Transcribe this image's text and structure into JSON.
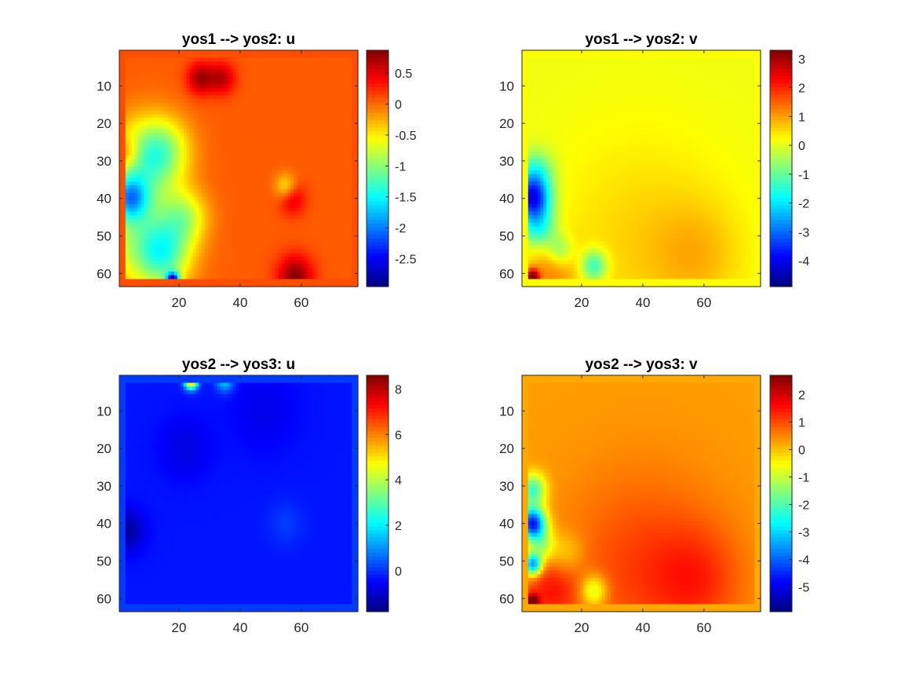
{
  "figure": {
    "background": "#ffffff",
    "colormap": "jet"
  },
  "chart_data": [
    {
      "type": "heatmap",
      "title": "yos1 --> yos2: u",
      "xlabel": "",
      "ylabel": "",
      "x_range": [
        0.5,
        78.5
      ],
      "y_range": [
        0.5,
        63.5
      ],
      "y_reversed": true,
      "x_ticks": [
        20,
        40,
        60
      ],
      "y_ticks": [
        10,
        20,
        30,
        40,
        50,
        60
      ],
      "clim": [
        -2.95,
        0.87
      ],
      "colorbar_ticks": [
        0.5,
        0,
        -0.5,
        -1,
        -1.5,
        -2,
        -2.5
      ],
      "colorbar_tick_labels": [
        "0.5",
        "0",
        "-0.5",
        "-1",
        "-1.5",
        "-2",
        "-2.5"
      ],
      "field": {
        "border_value": 0.1,
        "base_value": 0.05,
        "blobs": [
          {
            "x": 8,
            "y": 30,
            "r": 8,
            "v": -0.9
          },
          {
            "x": 15,
            "y": 27,
            "r": 6,
            "v": -0.7
          },
          {
            "x": 4,
            "y": 40,
            "r": 4,
            "v": -1.3
          },
          {
            "x": 7,
            "y": 50,
            "r": 10,
            "v": -0.8
          },
          {
            "x": 15,
            "y": 55,
            "r": 6,
            "v": -1.0
          },
          {
            "x": 22,
            "y": 45,
            "r": 5,
            "v": -0.7
          },
          {
            "x": 27,
            "y": 8,
            "r": 3,
            "v": 0.7
          },
          {
            "x": 34,
            "y": 8,
            "r": 3,
            "v": 0.6
          },
          {
            "x": 3,
            "y": 28,
            "r": 3,
            "v": 0.5
          },
          {
            "x": 58,
            "y": 61,
            "r": 4,
            "v": 0.8
          },
          {
            "x": 57,
            "y": 40,
            "r": 3,
            "v": 0.5
          },
          {
            "x": 55,
            "y": 37,
            "r": 2.5,
            "v": -0.6
          },
          {
            "x": 18,
            "y": 62,
            "r": 1.5,
            "v": -2.5
          }
        ]
      }
    },
    {
      "type": "heatmap",
      "title": "yos1 --> yos2: v",
      "xlabel": "",
      "ylabel": "",
      "x_range": [
        0.5,
        78.5
      ],
      "y_range": [
        0.5,
        63.5
      ],
      "y_reversed": true,
      "x_ticks": [
        20,
        40,
        60
      ],
      "y_ticks": [
        10,
        20,
        30,
        40,
        50,
        60
      ],
      "clim": [
        -4.9,
        3.3
      ],
      "colorbar_ticks": [
        3,
        2,
        1,
        0,
        -1,
        -2,
        -3,
        -4
      ],
      "colorbar_tick_labels": [
        "3",
        "2",
        "1",
        "0",
        "-1",
        "-2",
        "-3",
        "-4"
      ],
      "field": {
        "border_value": 0.2,
        "base_value": 0.1,
        "blobs": [
          {
            "x": 4,
            "y": 40,
            "r": 4,
            "v": -3.8
          },
          {
            "x": 5,
            "y": 33,
            "r": 4,
            "v": -1.5
          },
          {
            "x": 6,
            "y": 48,
            "r": 4,
            "v": -1.8
          },
          {
            "x": 13,
            "y": 54,
            "r": 3,
            "v": -1.2
          },
          {
            "x": 24,
            "y": 58,
            "r": 3,
            "v": -1.8
          },
          {
            "x": 40,
            "y": 52,
            "r": 20,
            "v": 0.5
          },
          {
            "x": 10,
            "y": 59,
            "r": 6,
            "v": 1.0
          },
          {
            "x": 58,
            "y": 55,
            "r": 10,
            "v": 0.5
          },
          {
            "x": 4,
            "y": 61,
            "r": 1.5,
            "v": 3.0
          }
        ]
      }
    },
    {
      "type": "heatmap",
      "title": "yos2 --> yos3: u",
      "xlabel": "",
      "ylabel": "",
      "x_range": [
        0.5,
        78.5
      ],
      "y_range": [
        0.5,
        63.5
      ],
      "y_reversed": true,
      "x_ticks": [
        20,
        40,
        60
      ],
      "y_ticks": [
        10,
        20,
        30,
        40,
        50,
        60
      ],
      "clim": [
        -1.8,
        8.6
      ],
      "colorbar_ticks": [
        8,
        6,
        4,
        2,
        0
      ],
      "colorbar_tick_labels": [
        "8",
        "6",
        "4",
        "2",
        "0"
      ],
      "field": {
        "border_value": 0.1,
        "base_value": -0.3,
        "blobs": [
          {
            "x": 3,
            "y": 42,
            "r": 4,
            "v": -1.2
          },
          {
            "x": 22,
            "y": 20,
            "r": 6,
            "v": -0.5
          },
          {
            "x": 55,
            "y": 40,
            "r": 4,
            "v": 0.4
          },
          {
            "x": 48,
            "y": 10,
            "r": 8,
            "v": -0.4
          },
          {
            "x": 24,
            "y": 2,
            "r": 1.5,
            "v": 6.5
          },
          {
            "x": 35,
            "y": 2,
            "r": 2,
            "v": 2.0
          }
        ]
      }
    },
    {
      "type": "heatmap",
      "title": "yos2 --> yos3: v",
      "xlabel": "",
      "ylabel": "",
      "x_range": [
        0.5,
        78.5
      ],
      "y_range": [
        0.5,
        63.5
      ],
      "y_reversed": true,
      "x_ticks": [
        20,
        40,
        60
      ],
      "y_ticks": [
        10,
        20,
        30,
        40,
        50,
        60
      ],
      "clim": [
        -5.9,
        2.7
      ],
      "colorbar_ticks": [
        2,
        1,
        0,
        -1,
        -2,
        -3,
        -4,
        -5
      ],
      "colorbar_tick_labels": [
        "2",
        "1",
        "0",
        "-1",
        "-2",
        "-3",
        "-4",
        "-5"
      ],
      "field": {
        "border_value": 0.2,
        "base_value": 0.3,
        "blobs": [
          {
            "x": 4,
            "y": 40,
            "r": 3,
            "v": -5.0
          },
          {
            "x": 4,
            "y": 31,
            "r": 3,
            "v": -2.5
          },
          {
            "x": 4,
            "y": 51,
            "r": 2,
            "v": -4.0
          },
          {
            "x": 7,
            "y": 46,
            "r": 3,
            "v": -1.5
          },
          {
            "x": 15,
            "y": 48,
            "r": 4,
            "v": -0.7
          },
          {
            "x": 40,
            "y": 52,
            "r": 18,
            "v": 0.8
          },
          {
            "x": 10,
            "y": 58,
            "r": 6,
            "v": 1.0
          },
          {
            "x": 58,
            "y": 55,
            "r": 10,
            "v": 0.7
          },
          {
            "x": 24,
            "y": 58,
            "r": 3,
            "v": -1.6
          },
          {
            "x": 4,
            "y": 61,
            "r": 1.5,
            "v": 2.5
          }
        ]
      }
    }
  ]
}
